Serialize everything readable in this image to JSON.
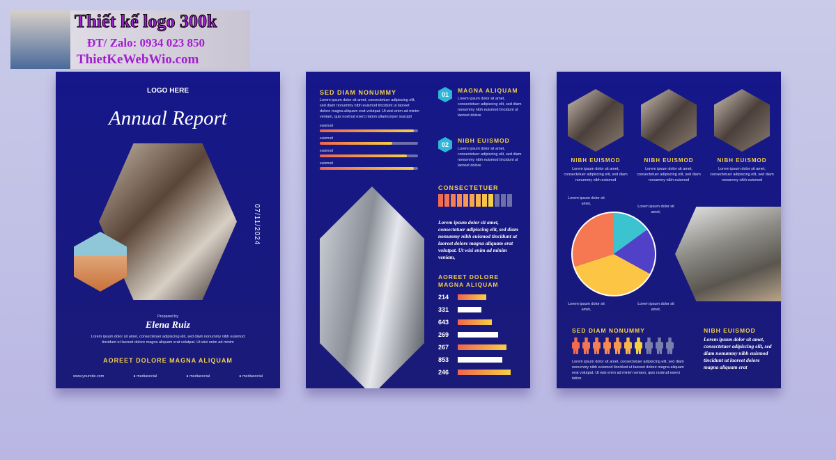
{
  "watermark": {
    "line1": "Thiết kế logo 300k",
    "line2": "ĐT/ Zalo: 0934 023 850",
    "line3": "ThietKeWebWio.com"
  },
  "cover": {
    "logo": "LOGO HERE",
    "title": "Annual Report",
    "date": "07/11/2024",
    "prepared_by": "Prepared by",
    "name": "Elena Ruiz",
    "body": "Lorem ipsum dolor sit amet, consectetuer adipiscing elit, sed diam nonummy nibh euismod tincidunt ut laoreet dolore magna aliquam erat volutpat. Ut wisi enim ad minim",
    "tagline": "AOREET DOLORE MAGNA ALIQUAM",
    "footer": [
      "www.yoursite.com",
      "mediasocial",
      "mediasocial",
      "mediasocial"
    ]
  },
  "page2": {
    "heading": "SED DIAM NONUMMY",
    "body": "Lorem ipsum dolor sit amet, consectetuer adipiscing elit, sed diam nonummy nibh euismod tincidunt ut laoreet dolore magna aliquam erat volutpat. Ut wisi enim ad minim veniam, quis nostrud exerci tation ullamcorper suscipit",
    "progress": [
      {
        "label": "euismod",
        "value": 0.96
      },
      {
        "label": "euismod",
        "value": 0.74
      },
      {
        "label": "euismod",
        "value": 0.89
      },
      {
        "label": "euismod",
        "value": 0.96
      }
    ],
    "items": [
      {
        "num": "01",
        "title": "MAGNA ALIQUAM",
        "body": "Lorem ipsum dolor sit amet, consectetuer adipiscing elit, sed diam nonummy nibh euismod tincidunt ut laoreet dolore"
      },
      {
        "num": "02",
        "title": "NIBH EUISMOD",
        "body": "Lorem ipsum dolor sit amet, consectetuer adipiscing elit, sed diam nonummy nibh euismod tincidunt ut laoreet dolore"
      }
    ],
    "consectetuer": {
      "title": "CONSECTETUER",
      "filled": 9,
      "total": 12
    },
    "quote": "Lorem ipsum dolor sit amet, consectetuer adipiscing elit, sed diam nonummy nibh euismod tincidunt ut laoreet dolore magna aliquam erat volutpat. Ut wisi enim ad minim veniam,",
    "bars_title": "AOREET DOLORE MAGNA ALIQUAM",
    "bars": [
      {
        "label": "214",
        "value": 0.54,
        "style": "gradient"
      },
      {
        "label": "331",
        "value": 0.45,
        "style": "white"
      },
      {
        "label": "643",
        "value": 0.64,
        "style": "gradient"
      },
      {
        "label": "269",
        "value": 0.76,
        "style": "white"
      },
      {
        "label": "267",
        "value": 0.92,
        "style": "gradient"
      },
      {
        "label": "853",
        "value": 0.84,
        "style": "white"
      },
      {
        "label": "246",
        "value": 1.0,
        "style": "gradient"
      }
    ]
  },
  "page3": {
    "cols": [
      {
        "title": "NIBH EUISMOD",
        "body": "Lorem ipsum dolor sit amet, consectetuer adipiscing elit, sed diam nonummy nibh euismod"
      },
      {
        "title": "NIBH EUISMOD",
        "body": "Lorem ipsum dolor sit amet, consectetuer adipiscing elit, sed diam nonummy nibh euismod"
      },
      {
        "title": "NIBH EUISMOD",
        "body": "Lorem ipsum dolor sit amet, consectetuer adipiscing elit, sed diam nonummy nibh euismod"
      }
    ],
    "pie_labels": [
      "Lorem ipsum dolor sit amet,",
      "Lorem ipsum dolor sit amet,",
      "Lorem ipsum dolor sit amet,",
      "Lorem ipsum dolor sit amet,"
    ],
    "people": {
      "title": "SED DIAM NONUMMY",
      "highlighted": 7,
      "total": 10,
      "body": "Lorem ipsum dolor sit amet, consectetuer adipiscing elit, sed diam nonummy nibh euismod tincidunt ut laoreet dolore magna aliquam erat volutpat. Ut wisi enim ad minim veniam, quis nostrud exerci tation"
    },
    "side": {
      "title": "NIBH EUISMOD",
      "body": "Lorem ipsum dolor sit amet, consectetuer adipiscing elit, sed diam nonummy nibh euismod tincidunt ut laoreet dolore magna aliquam erat"
    }
  },
  "chart_data": {
    "type": "pie",
    "slices": [
      {
        "value": 15,
        "color": "#3cc3d0"
      },
      {
        "value": 18,
        "color": "#5140c8"
      },
      {
        "value": 37,
        "color": "#fcc543"
      },
      {
        "value": 30,
        "color": "#f57852"
      }
    ]
  }
}
